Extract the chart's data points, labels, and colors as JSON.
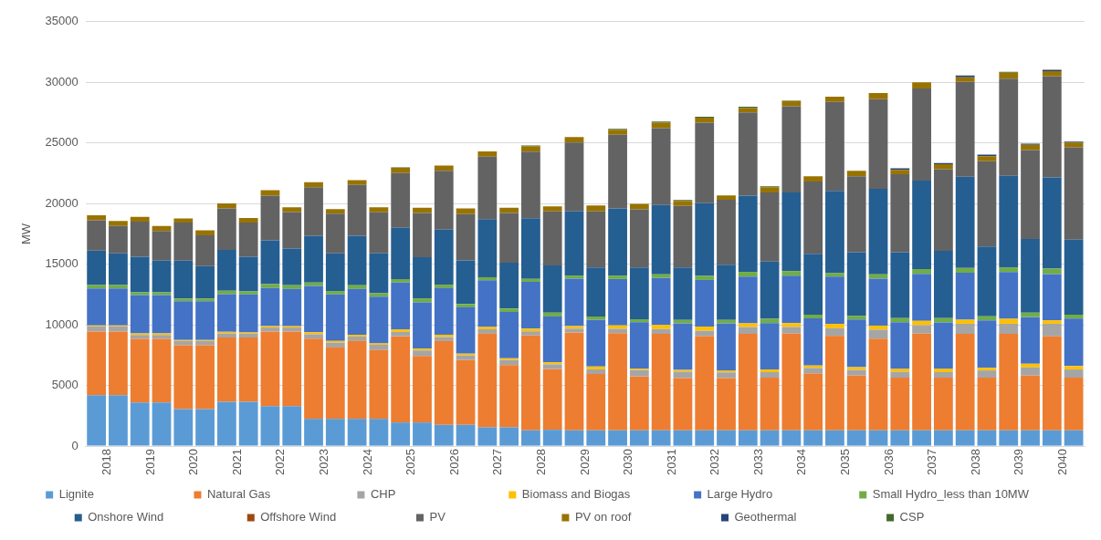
{
  "chart_data": {
    "type": "bar",
    "stacked": true,
    "ylabel": "MW",
    "categories": [
      "2018",
      null,
      "2019",
      null,
      "2020",
      null,
      "2021",
      null,
      "2022",
      null,
      "2023",
      null,
      "2024",
      null,
      "2025",
      null,
      "2026",
      null,
      "2027",
      null,
      "2028",
      null,
      "2029",
      null,
      "2030",
      null,
      "2031",
      null,
      "2032",
      null,
      "2033",
      null,
      "2034",
      null,
      "2035",
      null,
      "2036",
      null,
      "2037",
      null,
      "2038",
      null,
      "2039",
      null,
      "2040",
      null
    ],
    "ylim": [
      0,
      35000
    ],
    "yticks": [
      0,
      5000,
      10000,
      15000,
      20000,
      25000,
      30000,
      35000
    ],
    "grid": "y",
    "legend": "bottom",
    "series": [
      {
        "name": "Lignite",
        "color": "#5b9bd5",
        "values": [
          4200,
          4200,
          3600,
          3600,
          3050,
          3050,
          3650,
          3650,
          3300,
          3300,
          2250,
          2250,
          2250,
          2250,
          1950,
          1950,
          1750,
          1750,
          1550,
          1550,
          1300,
          1350,
          1300,
          1300,
          1300,
          1300,
          1300,
          1300,
          1300,
          1300,
          1300,
          1300,
          1300,
          1300,
          1300,
          1300,
          1300,
          1300,
          1300,
          1300,
          1300,
          1300,
          1300,
          1300,
          1300,
          1300
        ]
      },
      {
        "name": "Natural Gas",
        "color": "#ed7d31",
        "values": [
          5250,
          5250,
          5240,
          5240,
          5260,
          5260,
          5300,
          5300,
          6150,
          6150,
          6610,
          5890,
          6420,
          5670,
          7110,
          5490,
          6910,
          5350,
          7720,
          5130,
          7830,
          5000,
          8060,
          4640,
          8020,
          4450,
          7960,
          4310,
          7770,
          4310,
          7960,
          4350,
          7980,
          4680,
          7780,
          4520,
          7560,
          4350,
          7980,
          4350,
          7950,
          4350,
          7950,
          4520,
          7750,
          4350
        ]
      },
      {
        "name": "CHP",
        "color": "#a5a5a5",
        "values": [
          420,
          420,
          330,
          330,
          360,
          360,
          340,
          320,
          330,
          330,
          370,
          390,
          360,
          440,
          360,
          450,
          340,
          390,
          370,
          420,
          340,
          390,
          330,
          390,
          360,
          530,
          390,
          530,
          440,
          470,
          560,
          450,
          550,
          470,
          640,
          470,
          750,
          470,
          690,
          450,
          840,
          590,
          840,
          670,
          1040,
          670
        ]
      },
      {
        "name": "Biomass and Biogas",
        "color": "#ffc000",
        "values": [
          80,
          80,
          120,
          120,
          90,
          90,
          130,
          100,
          110,
          110,
          160,
          140,
          140,
          110,
          200,
          140,
          190,
          140,
          190,
          140,
          220,
          170,
          200,
          230,
          280,
          110,
          340,
          140,
          340,
          140,
          310,
          220,
          310,
          200,
          360,
          220,
          330,
          250,
          360,
          270,
          330,
          220,
          410,
          300,
          280,
          280
        ]
      },
      {
        "name": "Large Hydro",
        "color": "#4472c4",
        "values": [
          3050,
          3050,
          3160,
          3160,
          3190,
          3190,
          3120,
          3140,
          3150,
          3070,
          3820,
          3840,
          3790,
          3850,
          3870,
          3820,
          3840,
          3820,
          3840,
          3820,
          3850,
          3780,
          3920,
          3850,
          3820,
          3820,
          3880,
          3850,
          3850,
          3910,
          3850,
          3820,
          3910,
          3880,
          3890,
          3940,
          3870,
          3850,
          3880,
          3830,
          3880,
          3910,
          3850,
          3850,
          3820,
          3910
        ]
      },
      {
        "name": "Small Hydro_less than 10MW",
        "color": "#70ad47",
        "values": [
          290,
          290,
          230,
          230,
          230,
          230,
          280,
          250,
          310,
          310,
          280,
          280,
          310,
          280,
          280,
          330,
          280,
          270,
          260,
          280,
          250,
          310,
          250,
          280,
          280,
          250,
          300,
          280,
          330,
          280,
          390,
          360,
          390,
          310,
          300,
          300,
          360,
          340,
          390,
          360,
          390,
          330,
          390,
          360,
          440,
          330
        ]
      },
      {
        "name": "Onshore Wind",
        "color": "#255e91",
        "values": [
          2830,
          2610,
          2940,
          2610,
          3110,
          2670,
          3360,
          2860,
          3620,
          3030,
          3850,
          3100,
          4070,
          3290,
          4230,
          3400,
          4540,
          3600,
          4790,
          3780,
          5010,
          3900,
          5300,
          4040,
          5550,
          4270,
          5720,
          4320,
          6000,
          4540,
          6280,
          4720,
          6470,
          5020,
          6780,
          5240,
          7050,
          5430,
          7290,
          5550,
          7530,
          5760,
          7560,
          6080,
          7530,
          6190
        ]
      },
      {
        "name": "Offshore Wind",
        "color": "#9e480e",
        "values": [
          0,
          0,
          0,
          0,
          0,
          0,
          0,
          0,
          0,
          0,
          0,
          0,
          0,
          0,
          0,
          0,
          0,
          0,
          0,
          0,
          0,
          0,
          0,
          0,
          0,
          0,
          0,
          0,
          0,
          0,
          0,
          0,
          0,
          0,
          0,
          0,
          0,
          0,
          0,
          0,
          0,
          0,
          0,
          0,
          0,
          0
        ]
      },
      {
        "name": "PV",
        "color": "#636363",
        "values": [
          2510,
          2250,
          2890,
          2450,
          3140,
          2530,
          3420,
          2810,
          3680,
          3010,
          4010,
          3280,
          4200,
          3400,
          4520,
          3650,
          4850,
          3810,
          5150,
          4100,
          5490,
          4460,
          5680,
          4630,
          6060,
          4800,
          6340,
          5080,
          6640,
          5360,
          6860,
          5690,
          7120,
          5960,
          7340,
          6260,
          7390,
          6430,
          7610,
          6730,
          7810,
          7030,
          8010,
          7340,
          8340,
          7620
        ]
      },
      {
        "name": "PV on roof",
        "color": "#997300",
        "values": [
          410,
          420,
          390,
          410,
          340,
          410,
          420,
          390,
          450,
          390,
          420,
          370,
          390,
          410,
          420,
          420,
          440,
          480,
          440,
          440,
          440,
          410,
          440,
          480,
          420,
          450,
          440,
          420,
          420,
          360,
          390,
          450,
          420,
          430,
          420,
          450,
          500,
          360,
          510,
          410,
          390,
          410,
          480,
          420,
          430,
          390
        ]
      },
      {
        "name": "Geothermal",
        "color": "#264478",
        "values": [
          0,
          0,
          0,
          0,
          0,
          0,
          0,
          0,
          0,
          0,
          0,
          0,
          0,
          0,
          0,
          0,
          0,
          0,
          0,
          0,
          0,
          0,
          0,
          0,
          0,
          0,
          0,
          0,
          0,
          0,
          0,
          0,
          0,
          0,
          0,
          0,
          0,
          140,
          0,
          90,
          140,
          140,
          0,
          110,
          110,
          80
        ]
      },
      {
        "name": "CSP",
        "color": "#43682b",
        "values": [
          0,
          0,
          0,
          0,
          0,
          0,
          0,
          0,
          0,
          0,
          0,
          0,
          0,
          0,
          50,
          0,
          0,
          0,
          0,
          0,
          70,
          0,
          0,
          0,
          80,
          0,
          90,
          60,
          80,
          0,
          80,
          60,
          50,
          0,
          0,
          0,
          0,
          0,
          0,
          0,
          0,
          0,
          80,
          0,
          0,
          0
        ]
      }
    ]
  }
}
